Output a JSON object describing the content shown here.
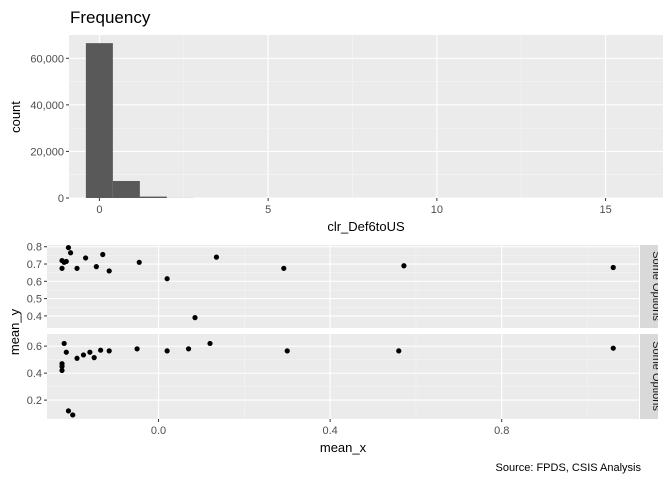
{
  "chart_data": [
    {
      "type": "bar",
      "title": "Frequency",
      "xlabel": "clr_Def6toUS",
      "ylabel": "count",
      "xlim": [
        -0.9,
        16.7
      ],
      "ylim": [
        0,
        70000
      ],
      "x_ticks": [
        0,
        5,
        10,
        15
      ],
      "y_ticks": [
        0,
        20000,
        40000,
        60000
      ],
      "x_tick_labels": [
        "0",
        "5",
        "10",
        "15"
      ],
      "y_tick_labels": [
        "0",
        "20,000",
        "40,000",
        "60,000"
      ],
      "bin_width": 0.8,
      "bins": [
        {
          "start": -0.4,
          "end": 0.4,
          "count": 66500
        },
        {
          "start": 0.4,
          "end": 1.2,
          "count": 7300
        },
        {
          "start": 1.2,
          "end": 2.0,
          "count": 600
        },
        {
          "start": 2.0,
          "end": 2.8,
          "count": 40
        }
      ],
      "bar_color": "#595959",
      "grid": true
    },
    {
      "type": "scatter",
      "xlabel": "mean_x",
      "ylabel": "mean_y",
      "xlim": [
        -0.26,
        1.12
      ],
      "x_ticks": [
        0.0,
        0.4,
        0.8
      ],
      "x_tick_labels": [
        "0.0",
        "0.4",
        "0.8"
      ],
      "point_color": "#000000",
      "facets": [
        {
          "strip_label": "Some Options",
          "ylim": [
            0.33,
            0.81
          ],
          "y_ticks": [
            0.4,
            0.5,
            0.6,
            0.7,
            0.8
          ],
          "y_tick_labels": [
            "0.4",
            "0.5",
            "0.6",
            "0.7",
            "0.8"
          ],
          "x": [
            -0.225,
            -0.22,
            -0.225,
            -0.215,
            -0.21,
            -0.205,
            -0.19,
            -0.17,
            -0.145,
            -0.13,
            -0.115,
            -0.045,
            0.02,
            0.085,
            0.135,
            0.292,
            0.572,
            1.06
          ],
          "y": [
            0.72,
            0.71,
            0.675,
            0.715,
            0.795,
            0.765,
            0.675,
            0.735,
            0.685,
            0.755,
            0.66,
            0.71,
            0.615,
            0.39,
            0.74,
            0.675,
            0.69,
            0.68
          ]
        },
        {
          "strip_label": "Some Options",
          "ylim": [
            0.06,
            0.69
          ],
          "y_ticks": [
            0.2,
            0.4,
            0.6
          ],
          "y_tick_labels": [
            "0.2",
            "0.4",
            "0.6"
          ],
          "x": [
            -0.225,
            -0.225,
            -0.225,
            -0.22,
            -0.215,
            -0.21,
            -0.2,
            -0.19,
            -0.175,
            -0.16,
            -0.15,
            -0.135,
            -0.115,
            -0.05,
            0.02,
            0.07,
            0.12,
            0.3,
            0.56,
            1.06
          ],
          "y": [
            0.42,
            0.45,
            0.47,
            0.62,
            0.555,
            0.12,
            0.09,
            0.51,
            0.535,
            0.555,
            0.515,
            0.57,
            0.565,
            0.58,
            0.565,
            0.58,
            0.62,
            0.565,
            0.565,
            0.585
          ]
        }
      ],
      "grid": true
    }
  ],
  "caption": "Source: FPDS, CSIS Analysis"
}
